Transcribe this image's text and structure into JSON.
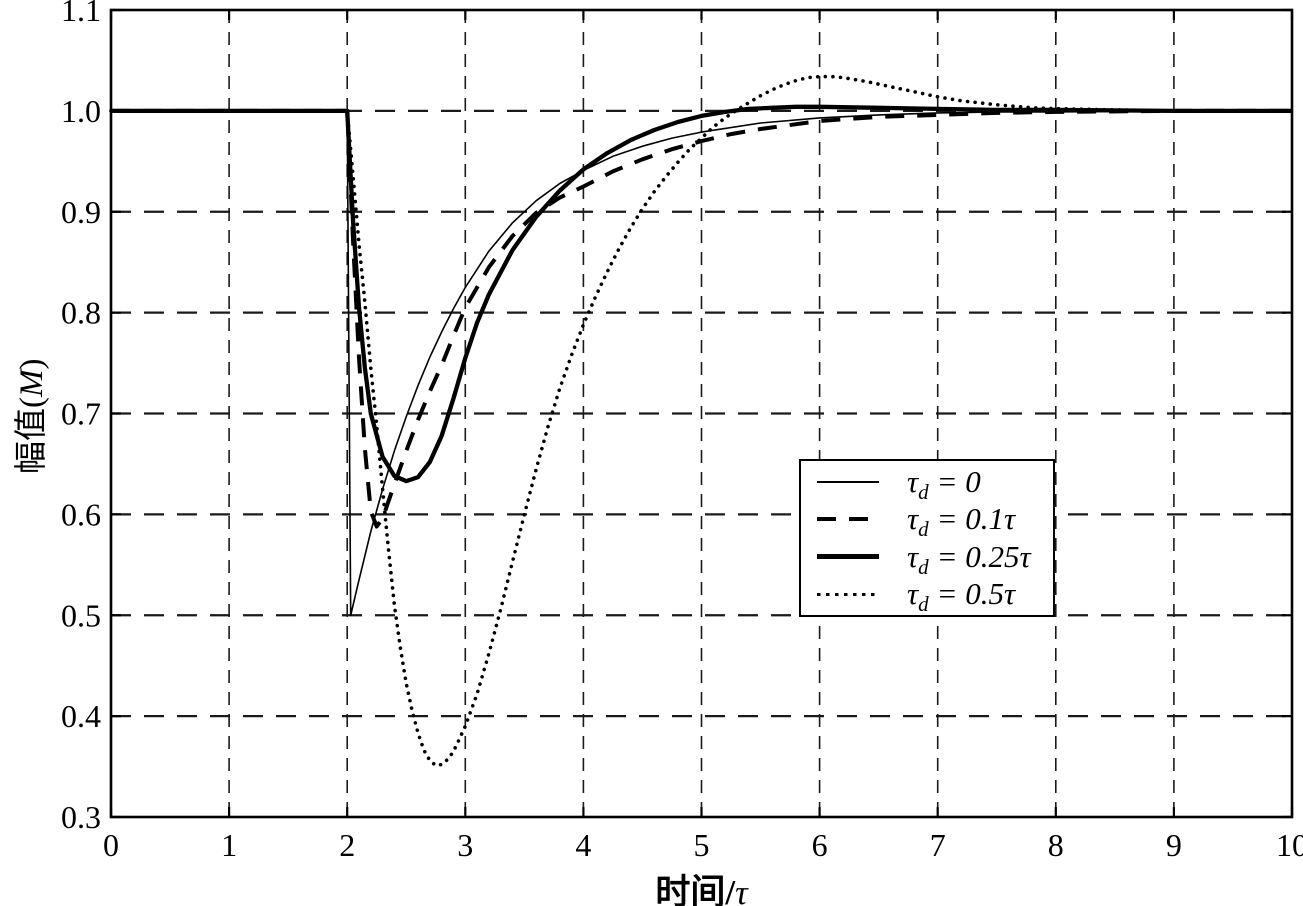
{
  "figure": {
    "background": "#ffffff",
    "axis_color": "#000000",
    "grid_color": "#1a1a1a"
  },
  "axis_titles": {
    "x_prefix": "时间/",
    "x_symbol": "τ",
    "y_prefix": "幅值(",
    "y_symbol": "M",
    "y_suffix": ")"
  },
  "legend": {
    "items": [
      {
        "tau": "τ",
        "sub": "d",
        "value": "= 0",
        "style": "thin-solid"
      },
      {
        "tau": "τ",
        "sub": "d",
        "value": "= 0.1τ",
        "style": "dashed"
      },
      {
        "tau": "τ",
        "sub": "d",
        "value": "= 0.25τ",
        "style": "thick-solid"
      },
      {
        "tau": "τ",
        "sub": "d",
        "value": "= 0.5τ",
        "style": "dotted"
      }
    ]
  },
  "chart_data": {
    "type": "line",
    "title": "",
    "xlabel": "时间/τ",
    "ylabel": "幅值(M)",
    "xlim": [
      0,
      10
    ],
    "ylim": [
      0.3,
      1.1
    ],
    "x_ticks": [
      0,
      1,
      2,
      3,
      4,
      5,
      6,
      7,
      8,
      9,
      10
    ],
    "x_tick_labels": [
      "0",
      "1",
      "2",
      "3",
      "4",
      "5",
      "6",
      "7",
      "8",
      "9",
      "10"
    ],
    "y_ticks": [
      0.3,
      0.4,
      0.5,
      0.6,
      0.7,
      0.8,
      0.9,
      1.0,
      1.1
    ],
    "y_tick_labels": [
      "0.3",
      "0.4",
      "0.5",
      "0.6",
      "0.7",
      "0.8",
      "0.9",
      "1.0",
      "1.1"
    ],
    "grid": true,
    "legend_position": "inside-lower-right",
    "series": [
      {
        "name": "taud-0",
        "label": "τd = 0",
        "line_style": "thin-solid",
        "points": [
          [
            0,
            1
          ],
          [
            1,
            1
          ],
          [
            2,
            1
          ],
          [
            2.03,
            0.5
          ],
          [
            2.1,
            0.535
          ],
          [
            2.2,
            0.583
          ],
          [
            2.3,
            0.625
          ],
          [
            2.4,
            0.663
          ],
          [
            2.5,
            0.697
          ],
          [
            2.6,
            0.728
          ],
          [
            2.7,
            0.756
          ],
          [
            2.8,
            0.781
          ],
          [
            2.9,
            0.804
          ],
          [
            3,
            0.825
          ],
          [
            3.2,
            0.861
          ],
          [
            3.4,
            0.889
          ],
          [
            3.6,
            0.911
          ],
          [
            3.8,
            0.928
          ],
          [
            4,
            0.941
          ],
          [
            4.25,
            0.955
          ],
          [
            4.5,
            0.965
          ],
          [
            4.75,
            0.973
          ],
          [
            5,
            0.979
          ],
          [
            5.5,
            0.988
          ],
          [
            6,
            0.993
          ],
          [
            6.5,
            0.996
          ],
          [
            7,
            0.998
          ],
          [
            7.5,
            0.999
          ],
          [
            8,
            0.999
          ],
          [
            9,
            1
          ],
          [
            10,
            1
          ]
        ]
      },
      {
        "name": "taud-0p1",
        "label": "τd = 0.1τ",
        "line_style": "dashed",
        "points": [
          [
            0,
            1
          ],
          [
            1,
            1
          ],
          [
            2,
            1
          ],
          [
            2.05,
            0.87
          ],
          [
            2.1,
            0.755
          ],
          [
            2.15,
            0.665
          ],
          [
            2.2,
            0.603
          ],
          [
            2.25,
            0.588
          ],
          [
            2.3,
            0.596
          ],
          [
            2.4,
            0.63
          ],
          [
            2.5,
            0.663
          ],
          [
            2.6,
            0.694
          ],
          [
            2.7,
            0.722
          ],
          [
            2.8,
            0.748
          ],
          [
            2.9,
            0.777
          ],
          [
            3,
            0.805
          ],
          [
            3.2,
            0.845
          ],
          [
            3.4,
            0.876
          ],
          [
            3.6,
            0.899
          ],
          [
            3.8,
            0.914
          ],
          [
            4,
            0.925
          ],
          [
            4.25,
            0.94
          ],
          [
            4.5,
            0.952
          ],
          [
            4.75,
            0.962
          ],
          [
            5,
            0.97
          ],
          [
            5.25,
            0.977
          ],
          [
            5.5,
            0.982
          ],
          [
            6,
            0.99
          ],
          [
            6.5,
            0.994
          ],
          [
            7,
            0.996
          ],
          [
            7.5,
            0.998
          ],
          [
            8,
            0.999
          ],
          [
            9,
            1
          ],
          [
            10,
            1
          ]
        ]
      },
      {
        "name": "taud-0p25",
        "label": "τd = 0.25τ",
        "line_style": "thick-solid",
        "points": [
          [
            0,
            1
          ],
          [
            1,
            1
          ],
          [
            2,
            1
          ],
          [
            2.05,
            0.89
          ],
          [
            2.1,
            0.805
          ],
          [
            2.15,
            0.745
          ],
          [
            2.2,
            0.7
          ],
          [
            2.3,
            0.657
          ],
          [
            2.4,
            0.638
          ],
          [
            2.5,
            0.633
          ],
          [
            2.6,
            0.637
          ],
          [
            2.7,
            0.652
          ],
          [
            2.8,
            0.678
          ],
          [
            2.9,
            0.715
          ],
          [
            3,
            0.755
          ],
          [
            3.1,
            0.79
          ],
          [
            3.2,
            0.818
          ],
          [
            3.4,
            0.862
          ],
          [
            3.6,
            0.895
          ],
          [
            3.8,
            0.921
          ],
          [
            4,
            0.942
          ],
          [
            4.2,
            0.958
          ],
          [
            4.4,
            0.971
          ],
          [
            4.6,
            0.981
          ],
          [
            4.8,
            0.989
          ],
          [
            5,
            0.995
          ],
          [
            5.2,
            0.999
          ],
          [
            5.4,
            1.002
          ],
          [
            5.6,
            1.003
          ],
          [
            5.8,
            1.004
          ],
          [
            6,
            1.004
          ],
          [
            6.5,
            1.003
          ],
          [
            7,
            1.002
          ],
          [
            7.5,
            1.001
          ],
          [
            8,
            1.001
          ],
          [
            9,
            1
          ],
          [
            10,
            1
          ]
        ]
      },
      {
        "name": "taud-0p5",
        "label": "τd = 0.5τ",
        "line_style": "dotted",
        "points": [
          [
            0,
            1
          ],
          [
            1,
            1
          ],
          [
            2,
            1
          ],
          [
            2.05,
            0.935
          ],
          [
            2.1,
            0.868
          ],
          [
            2.15,
            0.81
          ],
          [
            2.2,
            0.745
          ],
          [
            2.25,
            0.688
          ],
          [
            2.3,
            0.625
          ],
          [
            2.35,
            0.565
          ],
          [
            2.4,
            0.51
          ],
          [
            2.45,
            0.468
          ],
          [
            2.5,
            0.432
          ],
          [
            2.55,
            0.405
          ],
          [
            2.6,
            0.383
          ],
          [
            2.65,
            0.366
          ],
          [
            2.7,
            0.356
          ],
          [
            2.75,
            0.351
          ],
          [
            2.8,
            0.352
          ],
          [
            2.85,
            0.357
          ],
          [
            2.9,
            0.365
          ],
          [
            3,
            0.39
          ],
          [
            3.1,
            0.422
          ],
          [
            3.2,
            0.462
          ],
          [
            3.3,
            0.506
          ],
          [
            3.4,
            0.553
          ],
          [
            3.5,
            0.6
          ],
          [
            3.6,
            0.645
          ],
          [
            3.7,
            0.687
          ],
          [
            3.8,
            0.725
          ],
          [
            3.9,
            0.758
          ],
          [
            4,
            0.788
          ],
          [
            4.1,
            0.815
          ],
          [
            4.2,
            0.84
          ],
          [
            4.3,
            0.863
          ],
          [
            4.4,
            0.884
          ],
          [
            4.5,
            0.903
          ],
          [
            4.6,
            0.92
          ],
          [
            4.7,
            0.935
          ],
          [
            4.8,
            0.949
          ],
          [
            4.9,
            0.962
          ],
          [
            5,
            0.973
          ],
          [
            5.1,
            0.984
          ],
          [
            5.2,
            0.993
          ],
          [
            5.3,
            1.001
          ],
          [
            5.4,
            1.008
          ],
          [
            5.5,
            1.015
          ],
          [
            5.6,
            1.021
          ],
          [
            5.7,
            1.026
          ],
          [
            5.8,
            1.03
          ],
          [
            5.9,
            1.033
          ],
          [
            6,
            1.034
          ],
          [
            6.1,
            1.034
          ],
          [
            6.2,
            1.033
          ],
          [
            6.4,
            1.029
          ],
          [
            6.6,
            1.024
          ],
          [
            6.8,
            1.019
          ],
          [
            7,
            1.014
          ],
          [
            7.2,
            1.01
          ],
          [
            7.5,
            1.006
          ],
          [
            7.8,
            1.003
          ],
          [
            8.1,
            1.002
          ],
          [
            8.5,
            1.001
          ],
          [
            9,
            1
          ],
          [
            10,
            1
          ]
        ]
      }
    ]
  }
}
